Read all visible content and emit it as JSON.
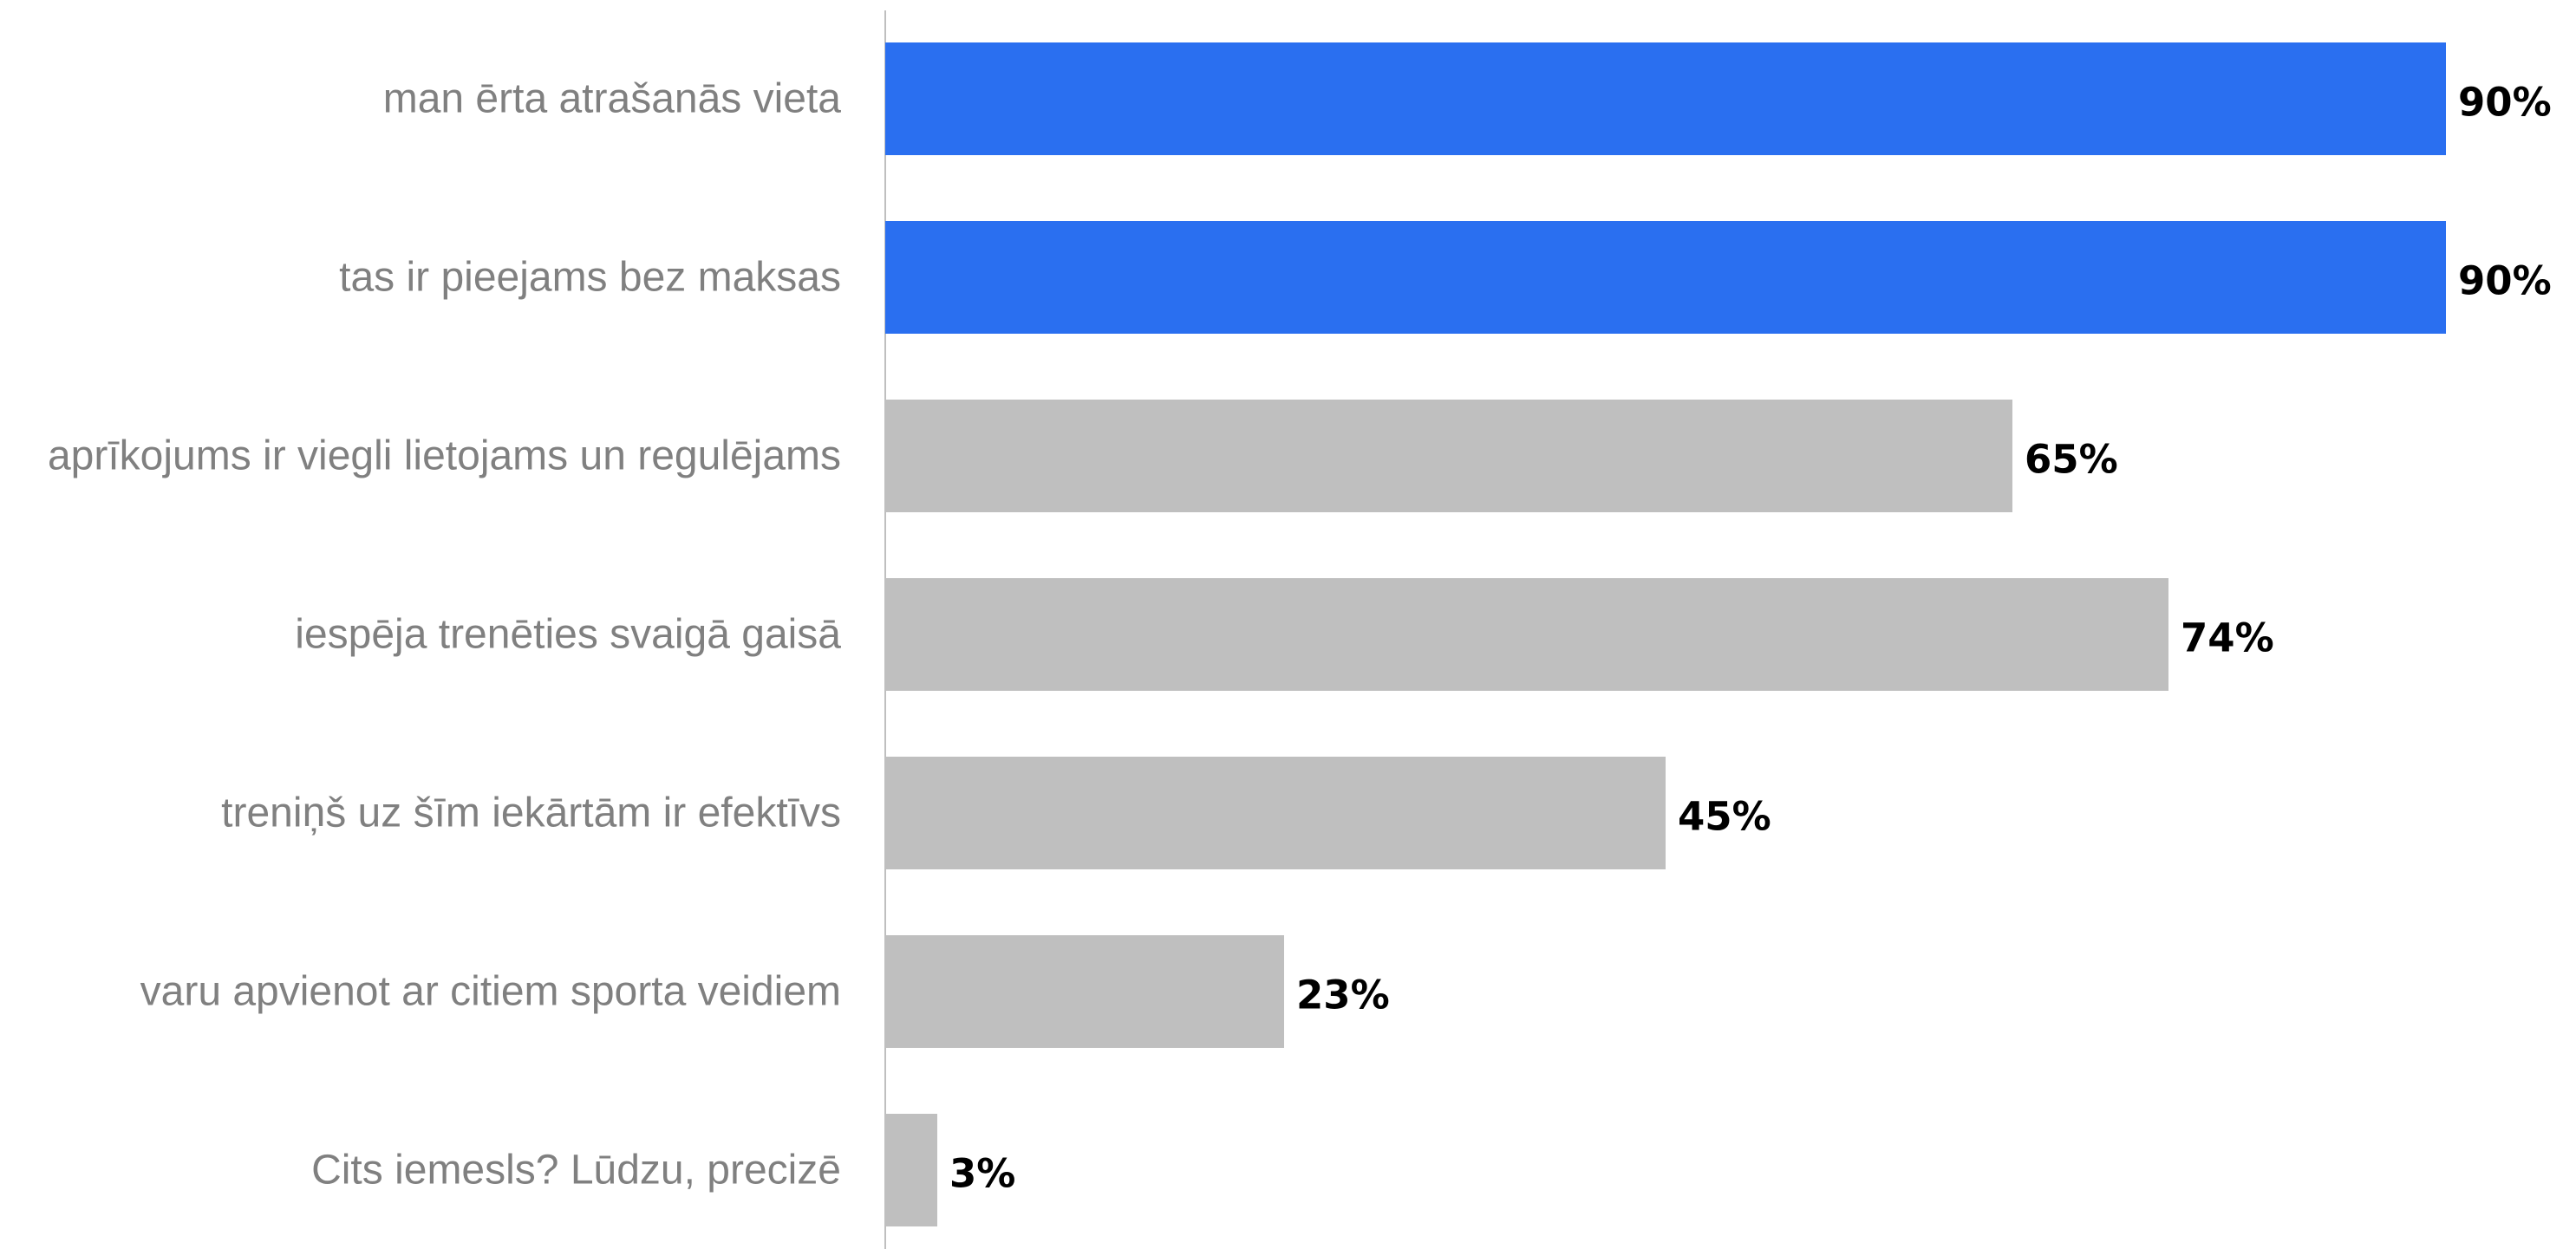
{
  "chart_data": {
    "type": "bar",
    "orientation": "horizontal",
    "categories": [
      "man ērta atrašanās vieta",
      "tas ir pieejams bez maksas",
      "aprīkojums ir viegli lietojams un regulējams",
      "iespēja trenēties svaigā gaisā",
      "treniņš uz šīm iekārtām ir efektīvs",
      "varu apvienot ar citiem sporta veidiem",
      "Cits iemesls? Lūdzu, precizē"
    ],
    "values": [
      90,
      90,
      65,
      74,
      45,
      23,
      3
    ],
    "value_labels": [
      "90%",
      "90%",
      "65%",
      "74%",
      "45%",
      "23%",
      "3%"
    ],
    "highlighted": [
      true,
      true,
      false,
      false,
      false,
      false,
      false
    ],
    "colors": {
      "highlight": "#2a6ff0",
      "default": "#bfbfbf",
      "axis": "#bfbfbf",
      "category_text": "#808080",
      "value_text": "#000000"
    },
    "xlim": [
      0,
      100
    ],
    "grid": false,
    "legend": "none",
    "title": "",
    "xlabel": "",
    "ylabel": ""
  }
}
